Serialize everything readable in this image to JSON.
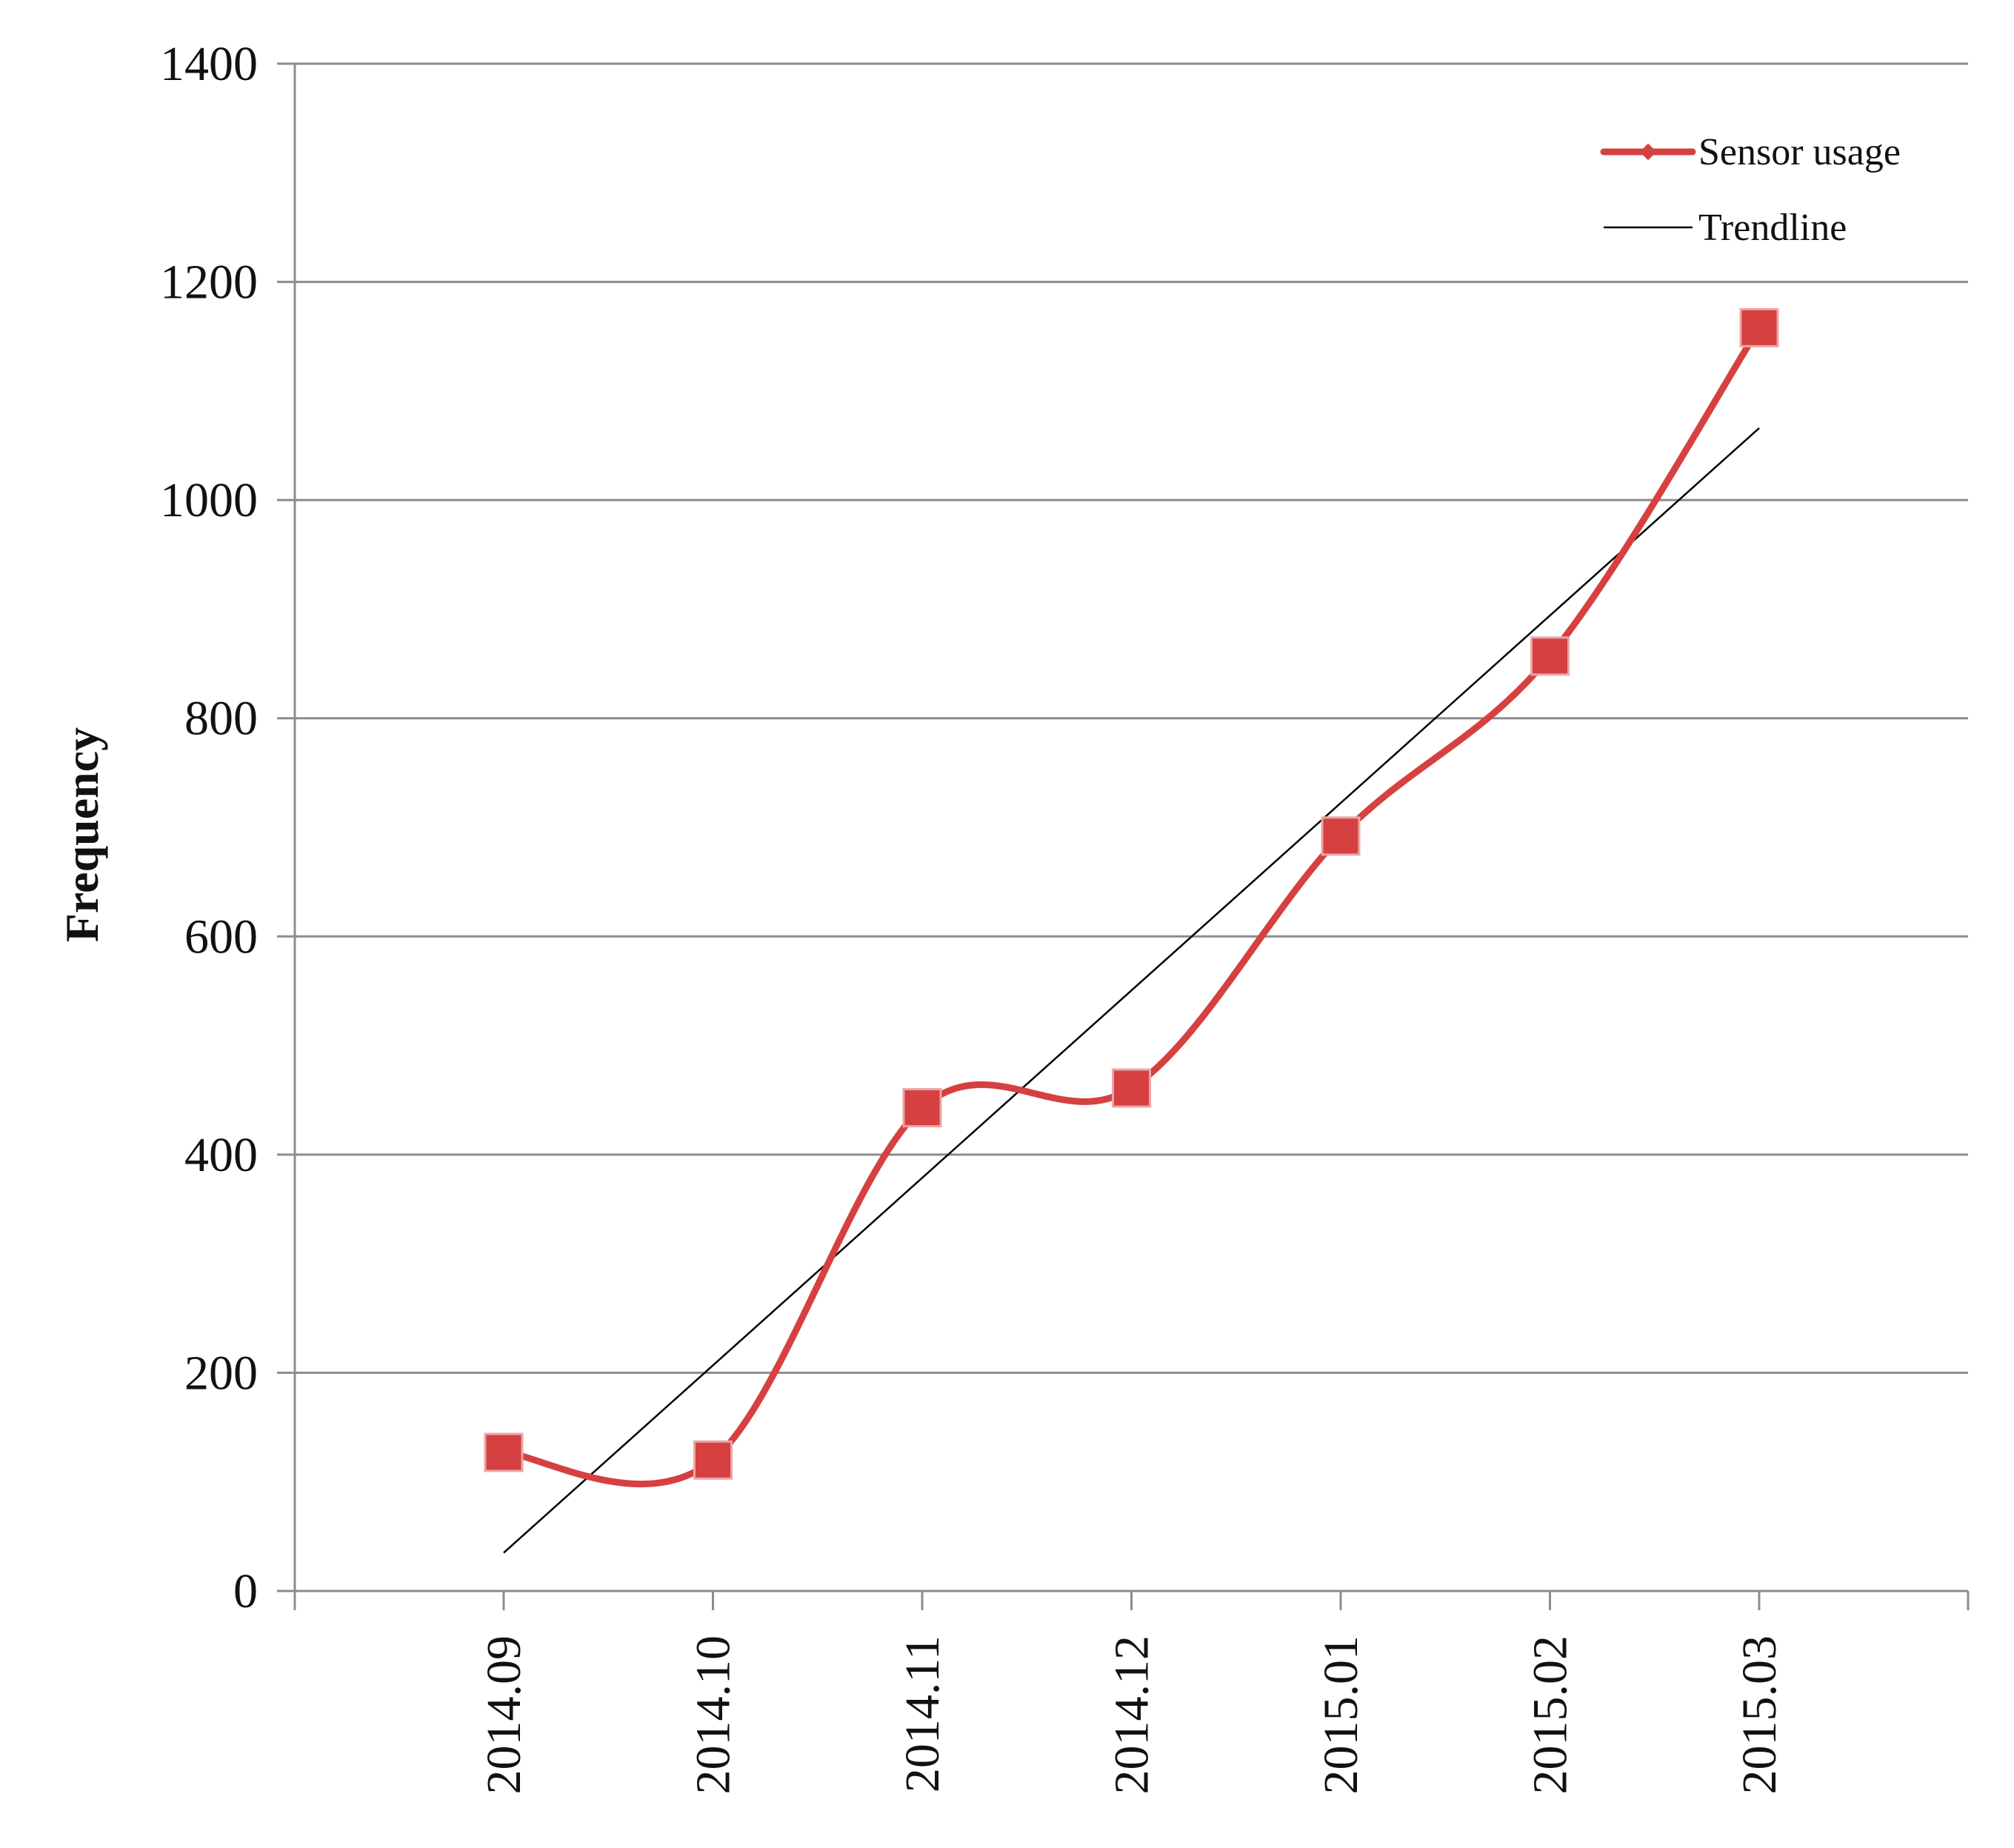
{
  "chart_data": {
    "type": "line",
    "categories": [
      "2014.09",
      "2014.10",
      "2014.11",
      "2014.12",
      "2015.01",
      "2015.02",
      "2015.03"
    ],
    "series": [
      {
        "name": "Sensor usage",
        "values": [
          127,
          120,
          443,
          461,
          692,
          857,
          1158
        ],
        "color": "#d64040",
        "marker": "square",
        "smooth": true
      },
      {
        "name": "Trendline",
        "values": [
          35,
          207,
          379,
          551,
          722,
          894,
          1066
        ],
        "color": "#000000",
        "marker": "none",
        "smooth": false
      }
    ],
    "title": "",
    "xlabel": "",
    "ylabel": "Frequency",
    "ylim": [
      0,
      1400
    ],
    "yticks": [
      "0",
      "200",
      "400",
      "600",
      "800",
      "1000",
      "1200",
      "1400"
    ],
    "grid": "horizontal",
    "legend_position": "top-right"
  }
}
